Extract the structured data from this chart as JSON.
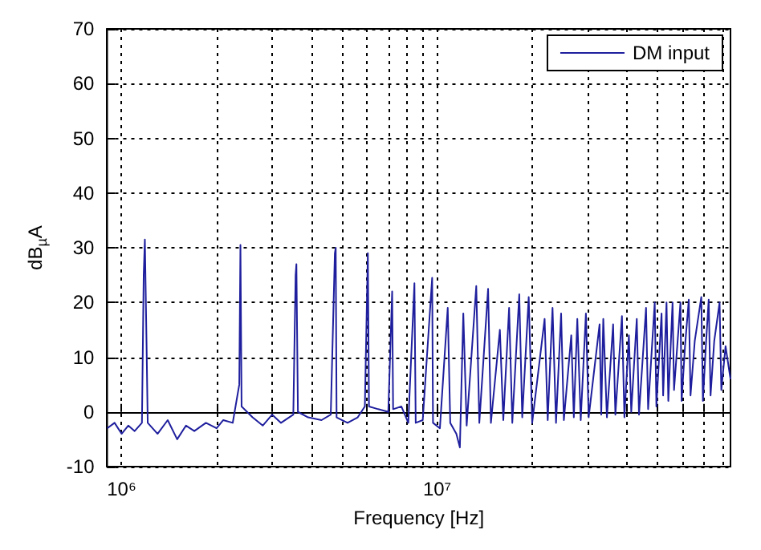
{
  "chart_data": {
    "type": "line",
    "xlabel": "Frequency [Hz]",
    "ylabel": "dB$_{µ}$A",
    "log": "x",
    "grid": true,
    "legend": "top right",
    "marker": "none",
    "line_style": "solid",
    "xlim": [
      900000,
      85000000
    ],
    "xticks": [
      {
        "value": 1000000,
        "label": "10⁶"
      },
      {
        "value": 2000000,
        "label": null
      },
      {
        "value": 3000000,
        "label": null
      },
      {
        "value": 4000000,
        "label": null
      },
      {
        "value": 5000000,
        "label": null
      },
      {
        "value": 6000000,
        "label": null
      },
      {
        "value": 7000000,
        "label": null
      },
      {
        "value": 8000000,
        "label": null
      },
      {
        "value": 9000000,
        "label": null
      },
      {
        "value": 10000000,
        "label": "10⁷"
      },
      {
        "value": 20000000,
        "label": null
      },
      {
        "value": 30000000,
        "label": null
      },
      {
        "value": 40000000,
        "label": null
      },
      {
        "value": 50000000,
        "label": null
      },
      {
        "value": 60000000,
        "label": null
      },
      {
        "value": 70000000,
        "label": null
      },
      {
        "value": 80000000,
        "label": null
      }
    ],
    "ylim": [
      -10,
      70
    ],
    "yticks": [
      -10,
      0,
      10,
      20,
      30,
      40,
      50,
      60,
      70
    ],
    "series": [
      {
        "name": "DM input",
        "color": "#1f1f9e",
        "x": [
          900000,
          950000,
          1000000,
          1050000,
          1100000,
          1160000,
          1175000,
          1185000,
          1200000,
          1210000,
          1300000,
          1400000,
          1500000,
          1600000,
          1700000,
          1850000,
          2000000,
          2100000,
          2250000,
          2360000,
          2380000,
          2400000,
          2600000,
          2800000,
          3000000,
          3200000,
          3500000,
          3560000,
          3580000,
          3620000,
          3900000,
          4300000,
          4600000,
          4740000,
          4770000,
          4800000,
          5200000,
          5600000,
          5900000,
          6030000,
          6080000,
          6500000,
          7000000,
          7200000,
          7250000,
          7700000,
          8100000,
          8470000,
          8550000,
          9000000,
          9640000,
          9700000,
          10200000,
          10800000,
          11000000,
          11500000,
          11800000,
          12100000,
          12400000,
          13300000,
          13600000,
          14500000,
          14800000,
          15800000,
          16200000,
          16900000,
          17300000,
          18200000,
          18600000,
          19500000,
          20000000,
          21900000,
          22400000,
          23200000,
          23800000,
          24700000,
          25200000,
          26600000,
          27100000,
          27800000,
          28500000,
          29600000,
          30200000,
          32700000,
          33100000,
          33600000,
          34500000,
          36100000,
          36700000,
          38500000,
          39200000,
          40500000,
          41200000,
          42900000,
          43600000,
          45900000,
          46600000,
          48900000,
          49500000,
          51400000,
          52000000,
          53300000,
          54000000,
          55700000,
          56300000,
          59000000,
          59500000,
          61000000,
          62700000,
          63500000,
          65500000,
          68700000,
          69500000,
          71000000,
          72500000,
          73500000,
          75500000,
          78500000,
          79500000,
          82000000,
          85000000
        ],
        "values": [
          -3,
          -2,
          -4,
          -2.5,
          -3.5,
          -2,
          25,
          31.5,
          12,
          -2,
          -4,
          -1.5,
          -5,
          -2.5,
          -3.5,
          -2,
          -3,
          -1.5,
          -2,
          5,
          30.5,
          1,
          -1,
          -2.5,
          -0.5,
          -2,
          -0.5,
          25,
          27,
          0,
          -1,
          -1.5,
          -0.5,
          29,
          30,
          -1,
          -2,
          -1,
          1,
          29,
          1,
          0.5,
          0,
          22,
          0.5,
          1,
          -2,
          23.5,
          -2,
          -1.5,
          24.5,
          -2,
          -3,
          19,
          -2,
          -4,
          -6.5,
          18,
          -2.5,
          23,
          -2,
          22.5,
          -2,
          15,
          -1.5,
          19,
          -2,
          21.5,
          -1,
          21,
          -2,
          17,
          -1.5,
          19,
          -2,
          18,
          -1.5,
          14,
          -1,
          17,
          -1.5,
          18,
          -1,
          16,
          -0.5,
          17,
          -1,
          16,
          -0.5,
          17.5,
          -1,
          14,
          0,
          17,
          -0.5,
          19,
          0.5,
          20,
          1,
          18,
          3,
          20,
          2,
          20,
          4,
          20,
          2,
          12,
          20.5,
          3,
          13,
          21,
          2,
          12,
          20.5,
          3,
          13,
          20,
          4,
          12,
          6
        ]
      }
    ]
  }
}
